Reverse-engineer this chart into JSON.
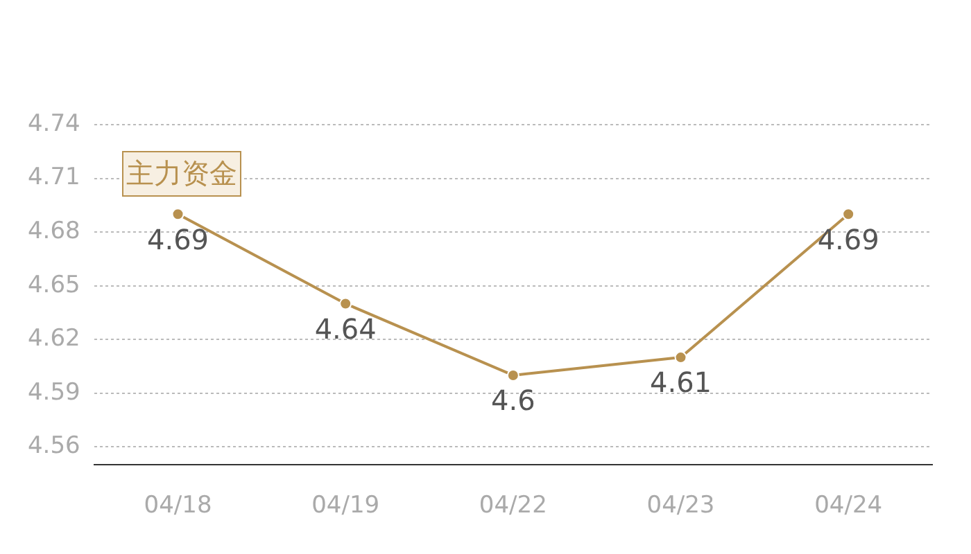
{
  "chart_data": {
    "type": "line",
    "categories": [
      "04/18",
      "04/19",
      "04/22",
      "04/23",
      "04/24"
    ],
    "series": [
      {
        "color": "#b8914f",
        "values": [
          4.69,
          4.64,
          4.6,
          4.61,
          4.69
        ]
      }
    ],
    "ylim": [
      4.55,
      4.74
    ],
    "yticks": [
      4.56,
      4.59,
      4.62,
      4.65,
      4.68,
      4.71,
      4.74
    ],
    "grid": "y",
    "marker": "circle",
    "line_style": "solid",
    "data_labels": true,
    "annotations": [
      "主力资金"
    ]
  }
}
